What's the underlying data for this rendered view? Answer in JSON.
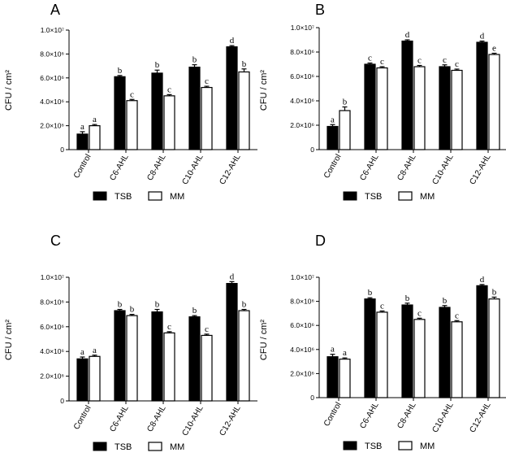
{
  "chart_data": [
    {
      "type": "bar",
      "panel": "A",
      "ylabel": "CFU / cm²",
      "ylim": [
        0,
        10000000
      ],
      "yticks": [
        "0",
        "2.0×10⁶",
        "4.0×10⁶",
        "6.0×10⁶",
        "8.0×10⁶",
        "1.0×10⁷"
      ],
      "categories": [
        "Control",
        "C6-AHL",
        "C8-AHL",
        "C10-AHL",
        "C12-AHL"
      ],
      "series": [
        {
          "name": "TSB",
          "values": [
            1300000,
            6100000,
            6400000,
            6900000,
            8600000
          ],
          "errors": [
            200000,
            100000,
            250000,
            200000,
            100000
          ],
          "labels": [
            "a",
            "b",
            "b",
            "b",
            "d"
          ]
        },
        {
          "name": "MM",
          "values": [
            2000000,
            4100000,
            4500000,
            5200000,
            6500000
          ],
          "errors": [
            100000,
            100000,
            100000,
            100000,
            250000
          ],
          "labels": [
            "a",
            "c",
            "c",
            "c",
            "b"
          ]
        }
      ],
      "legend": [
        "TSB",
        "MM"
      ]
    },
    {
      "type": "bar",
      "panel": "B",
      "ylabel": "CFU / cm²",
      "ylim": [
        0,
        10000000
      ],
      "yticks": [
        "0",
        "2.0×10⁶",
        "4.0×10⁶",
        "6.0×10⁶",
        "8.0×10⁶",
        "1.0×10⁷"
      ],
      "categories": [
        "Control",
        "C6-AHL",
        "C8-AHL",
        "C10-AHL",
        "C12-AHL"
      ],
      "series": [
        {
          "name": "TSB",
          "values": [
            1900000,
            7000000,
            8900000,
            6800000,
            8800000
          ],
          "errors": [
            150000,
            100000,
            100000,
            150000,
            100000
          ],
          "labels": [
            "a",
            "c",
            "d",
            "c",
            "d"
          ]
        },
        {
          "name": "MM",
          "values": [
            3200000,
            6700000,
            6800000,
            6500000,
            7800000
          ],
          "errors": [
            300000,
            100000,
            100000,
            100000,
            100000
          ],
          "labels": [
            "b",
            "c",
            "c",
            "c",
            "e"
          ]
        }
      ],
      "legend": [
        "TSB",
        "MM"
      ]
    },
    {
      "type": "bar",
      "panel": "C",
      "ylabel": "CFU / cm²",
      "ylim": [
        0,
        10000000
      ],
      "yticks": [
        "0",
        "2.0×10⁶",
        "4.0×10⁶",
        "6.0×10⁶",
        "8.0×10⁶",
        "1.0×10⁷"
      ],
      "categories": [
        "Control",
        "C6-AHL",
        "C8-AHL",
        "C10-AHL",
        "C12-AHL"
      ],
      "series": [
        {
          "name": "TSB",
          "values": [
            3400000,
            7300000,
            7200000,
            6800000,
            9500000
          ],
          "errors": [
            150000,
            100000,
            200000,
            100000,
            150000
          ],
          "labels": [
            "a",
            "b",
            "b",
            "b",
            "d"
          ]
        },
        {
          "name": "MM",
          "values": [
            3600000,
            6900000,
            5500000,
            5300000,
            7300000
          ],
          "errors": [
            100000,
            100000,
            100000,
            100000,
            100000
          ],
          "labels": [
            "a",
            "b",
            "c",
            "c",
            "b"
          ]
        }
      ],
      "legend": [
        "TSB",
        "MM"
      ]
    },
    {
      "type": "bar",
      "panel": "D",
      "ylabel": "CFU / cm²",
      "ylim": [
        0,
        10000000
      ],
      "yticks": [
        "0",
        "2.0×10⁶",
        "4.0×10⁶",
        "6.0×10⁶",
        "8.0×10⁶",
        "1.0×10⁷"
      ],
      "categories": [
        "Control",
        "C6-AHL",
        "C8-AHL",
        "C10-AHL",
        "C12-AHL"
      ],
      "series": [
        {
          "name": "TSB",
          "values": [
            3400000,
            8200000,
            7700000,
            7500000,
            9300000
          ],
          "errors": [
            200000,
            100000,
            150000,
            150000,
            100000
          ],
          "labels": [
            "a",
            "b",
            "b",
            "b",
            "d"
          ]
        },
        {
          "name": "MM",
          "values": [
            3200000,
            7100000,
            6500000,
            6300000,
            8200000
          ],
          "errors": [
            100000,
            100000,
            100000,
            100000,
            150000
          ],
          "labels": [
            "a",
            "c",
            "c",
            "c",
            "b"
          ]
        }
      ],
      "legend": [
        "TSB",
        "MM"
      ]
    }
  ]
}
